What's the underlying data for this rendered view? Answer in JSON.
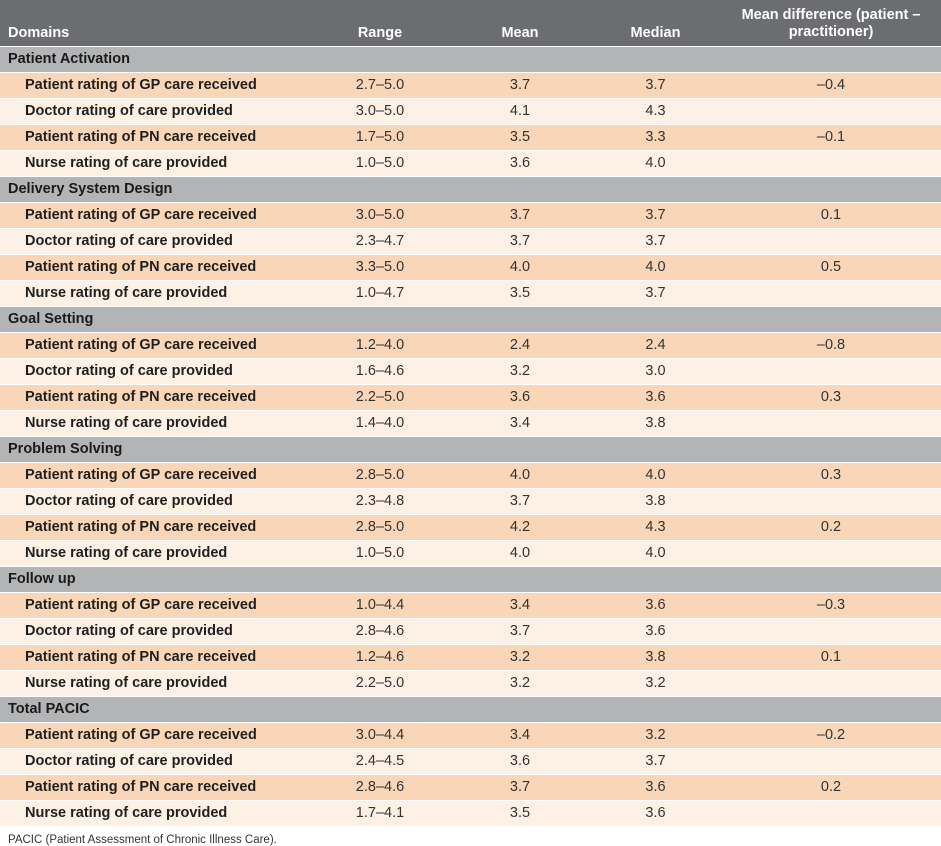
{
  "table": {
    "headers": {
      "domains": "Domains",
      "range": "Range",
      "mean": "Mean",
      "median": "Median",
      "diff_line1": "Mean difference (patient –",
      "diff_line2": "practitioner)"
    },
    "sections": [
      {
        "title": "Patient Activation",
        "rows": [
          {
            "label": "Patient rating of GP care received",
            "range": "2.7–5.0",
            "mean": "3.7",
            "median": "3.7",
            "diff": "–0.4"
          },
          {
            "label": "Doctor rating of care provided",
            "range": "3.0–5.0",
            "mean": "4.1",
            "median": "4.3",
            "diff": ""
          },
          {
            "label": "Patient rating of PN care received",
            "range": "1.7–5.0",
            "mean": "3.5",
            "median": "3.3",
            "diff": "–0.1"
          },
          {
            "label": "Nurse rating of care provided",
            "range": "1.0–5.0",
            "mean": "3.6",
            "median": "4.0",
            "diff": ""
          }
        ]
      },
      {
        "title": "Delivery System Design",
        "rows": [
          {
            "label": "Patient rating of GP care received",
            "range": "3.0–5.0",
            "mean": "3.7",
            "median": "3.7",
            "diff": "0.1"
          },
          {
            "label": "Doctor rating of care provided",
            "range": "2.3–4.7",
            "mean": "3.7",
            "median": "3.7",
            "diff": ""
          },
          {
            "label": "Patient rating of PN care received",
            "range": "3.3–5.0",
            "mean": "4.0",
            "median": "4.0",
            "diff": "0.5"
          },
          {
            "label": "Nurse rating of care provided",
            "range": "1.0–4.7",
            "mean": "3.5",
            "median": "3.7",
            "diff": ""
          }
        ]
      },
      {
        "title": "Goal Setting",
        "rows": [
          {
            "label": "Patient rating of GP care received",
            "range": "1.2–4.0",
            "mean": "2.4",
            "median": "2.4",
            "diff": "–0.8"
          },
          {
            "label": "Doctor rating of care provided",
            "range": "1.6–4.6",
            "mean": "3.2",
            "median": "3.0",
            "diff": ""
          },
          {
            "label": "Patient rating of PN care received",
            "range": "2.2–5.0",
            "mean": "3.6",
            "median": "3.6",
            "diff": "0.3"
          },
          {
            "label": "Nurse rating of care provided",
            "range": "1.4–4.0",
            "mean": "3.4",
            "median": "3.8",
            "diff": ""
          }
        ]
      },
      {
        "title": "Problem Solving",
        "rows": [
          {
            "label": "Patient rating of GP care received",
            "range": "2.8–5.0",
            "mean": "4.0",
            "median": "4.0",
            "diff": "0.3"
          },
          {
            "label": "Doctor rating of care provided",
            "range": "2.3–4.8",
            "mean": "3.7",
            "median": "3.8",
            "diff": ""
          },
          {
            "label": "Patient rating of PN care received",
            "range": "2.8–5.0",
            "mean": "4.2",
            "median": "4.3",
            "diff": "0.2"
          },
          {
            "label": "Nurse rating of care provided",
            "range": "1.0–5.0",
            "mean": "4.0",
            "median": "4.0",
            "diff": ""
          }
        ]
      },
      {
        "title": "Follow up",
        "rows": [
          {
            "label": "Patient rating of GP care received",
            "range": "1.0–4.4",
            "mean": "3.4",
            "median": "3.6",
            "diff": "–0.3"
          },
          {
            "label": "Doctor rating of care provided",
            "range": "2.8–4.6",
            "mean": "3.7",
            "median": "3.6",
            "diff": ""
          },
          {
            "label": "Patient rating of PN care received",
            "range": "1.2–4.6",
            "mean": "3.2",
            "median": "3.8",
            "diff": "0.1"
          },
          {
            "label": "Nurse rating of care provided",
            "range": "2.2–5.0",
            "mean": "3.2",
            "median": "3.2",
            "diff": ""
          }
        ]
      },
      {
        "title": "Total PACIC",
        "rows": [
          {
            "label": "Patient rating of GP care received",
            "range": "3.0–4.4",
            "mean": "3.4",
            "median": "3.2",
            "diff": "–0.2"
          },
          {
            "label": "Doctor rating of care provided",
            "range": "2.4–4.5",
            "mean": "3.6",
            "median": "3.7",
            "diff": ""
          },
          {
            "label": "Patient rating of PN care received",
            "range": "2.8–4.6",
            "mean": "3.7",
            "median": "3.6",
            "diff": "0.2"
          },
          {
            "label": "Nurse rating of care provided",
            "range": "1.7–4.1",
            "mean": "3.5",
            "median": "3.6",
            "diff": ""
          }
        ]
      }
    ]
  },
  "footnote": "PACIC (Patient Assessment of Chronic Illness Care)."
}
